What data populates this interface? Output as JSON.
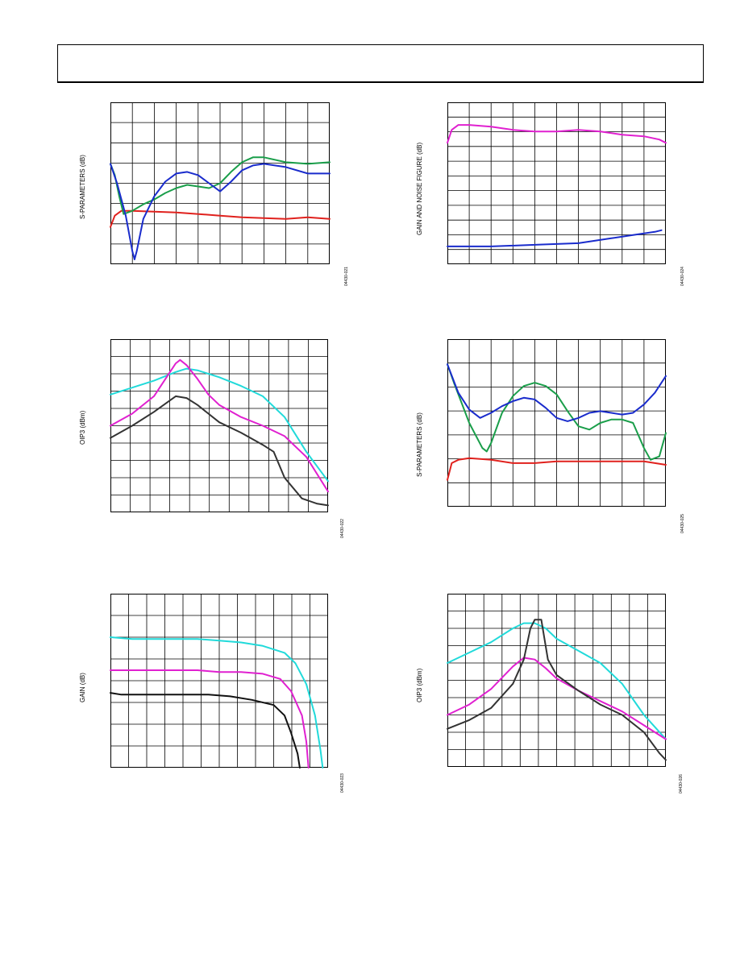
{
  "charts": [
    {
      "id": "c1",
      "ylabel": "S-PARAMETERS (dB)",
      "figid": "04430-021",
      "xticks": 10,
      "yticks": 8,
      "series": [
        {
          "color": "#e0211d",
          "pts": [
            [
              0,
              0.23
            ],
            [
              0.02,
              0.3
            ],
            [
              0.05,
              0.33
            ],
            [
              0.1,
              0.33
            ],
            [
              0.3,
              0.32
            ],
            [
              0.5,
              0.3
            ],
            [
              0.6,
              0.29
            ],
            [
              0.8,
              0.28
            ],
            [
              0.9,
              0.29
            ],
            [
              1,
              0.28
            ]
          ]
        },
        {
          "color": "#1a9e4a",
          "pts": [
            [
              0,
              0.62
            ],
            [
              0.02,
              0.55
            ],
            [
              0.04,
              0.42
            ],
            [
              0.06,
              0.31
            ],
            [
              0.1,
              0.33
            ],
            [
              0.15,
              0.37
            ],
            [
              0.2,
              0.4
            ],
            [
              0.25,
              0.44
            ],
            [
              0.3,
              0.47
            ],
            [
              0.35,
              0.49
            ],
            [
              0.4,
              0.48
            ],
            [
              0.45,
              0.47
            ],
            [
              0.5,
              0.5
            ],
            [
              0.55,
              0.57
            ],
            [
              0.6,
              0.63
            ],
            [
              0.65,
              0.66
            ],
            [
              0.7,
              0.66
            ],
            [
              0.8,
              0.63
            ],
            [
              0.9,
              0.62
            ],
            [
              1,
              0.63
            ]
          ]
        },
        {
          "color": "#1a2ccc",
          "pts": [
            [
              0,
              0.62
            ],
            [
              0.03,
              0.5
            ],
            [
              0.07,
              0.3
            ],
            [
              0.1,
              0.08
            ],
            [
              0.11,
              0.03
            ],
            [
              0.12,
              0.08
            ],
            [
              0.15,
              0.28
            ],
            [
              0.2,
              0.42
            ],
            [
              0.25,
              0.51
            ],
            [
              0.3,
              0.56
            ],
            [
              0.35,
              0.57
            ],
            [
              0.4,
              0.55
            ],
            [
              0.45,
              0.5
            ],
            [
              0.5,
              0.45
            ],
            [
              0.55,
              0.51
            ],
            [
              0.6,
              0.58
            ],
            [
              0.65,
              0.61
            ],
            [
              0.7,
              0.62
            ],
            [
              0.8,
              0.6
            ],
            [
              0.9,
              0.56
            ],
            [
              1,
              0.56
            ]
          ]
        }
      ]
    },
    {
      "id": "c2",
      "ylabel": "GAIN AND NOISE FIGURE (dB)",
      "figid": "04430-024",
      "xticks": 10,
      "yticks": 11,
      "series": [
        {
          "color": "#e020d0",
          "pts": [
            [
              0,
              0.75
            ],
            [
              0.02,
              0.83
            ],
            [
              0.05,
              0.86
            ],
            [
              0.1,
              0.86
            ],
            [
              0.2,
              0.85
            ],
            [
              0.3,
              0.83
            ],
            [
              0.4,
              0.82
            ],
            [
              0.5,
              0.82
            ],
            [
              0.6,
              0.83
            ],
            [
              0.7,
              0.82
            ],
            [
              0.8,
              0.8
            ],
            [
              0.9,
              0.79
            ],
            [
              0.97,
              0.77
            ],
            [
              1,
              0.75
            ]
          ]
        },
        {
          "color": "#1a2ccc",
          "pts": [
            [
              0,
              0.11
            ],
            [
              0.05,
              0.11
            ],
            [
              0.2,
              0.11
            ],
            [
              0.4,
              0.12
            ],
            [
              0.6,
              0.13
            ],
            [
              0.75,
              0.16
            ],
            [
              0.85,
              0.18
            ],
            [
              0.95,
              0.2
            ],
            [
              0.98,
              0.21
            ]
          ]
        }
      ]
    },
    {
      "id": "c3",
      "ylabel": "OIP3 (dBm)",
      "figid": "04430-022",
      "xticks": 11,
      "yticks": 10,
      "series": [
        {
          "color": "#21dada",
          "pts": [
            [
              0,
              0.68
            ],
            [
              0.1,
              0.72
            ],
            [
              0.2,
              0.76
            ],
            [
              0.3,
              0.81
            ],
            [
              0.35,
              0.83
            ],
            [
              0.4,
              0.82
            ],
            [
              0.5,
              0.78
            ],
            [
              0.6,
              0.73
            ],
            [
              0.7,
              0.67
            ],
            [
              0.8,
              0.55
            ],
            [
              0.9,
              0.35
            ],
            [
              1,
              0.18
            ]
          ]
        },
        {
          "color": "#e020d0",
          "pts": [
            [
              0,
              0.5
            ],
            [
              0.1,
              0.57
            ],
            [
              0.2,
              0.67
            ],
            [
              0.3,
              0.86
            ],
            [
              0.32,
              0.88
            ],
            [
              0.35,
              0.85
            ],
            [
              0.4,
              0.77
            ],
            [
              0.45,
              0.68
            ],
            [
              0.5,
              0.62
            ],
            [
              0.6,
              0.55
            ],
            [
              0.7,
              0.5
            ],
            [
              0.8,
              0.44
            ],
            [
              0.9,
              0.32
            ],
            [
              1,
              0.12
            ]
          ]
        },
        {
          "color": "#333333",
          "pts": [
            [
              0,
              0.43
            ],
            [
              0.1,
              0.5
            ],
            [
              0.2,
              0.58
            ],
            [
              0.3,
              0.67
            ],
            [
              0.35,
              0.66
            ],
            [
              0.4,
              0.62
            ],
            [
              0.5,
              0.52
            ],
            [
              0.6,
              0.46
            ],
            [
              0.7,
              0.39
            ],
            [
              0.75,
              0.35
            ],
            [
              0.8,
              0.2
            ],
            [
              0.88,
              0.08
            ],
            [
              0.95,
              0.05
            ],
            [
              1,
              0.04
            ]
          ]
        }
      ]
    },
    {
      "id": "c4",
      "ylabel": "S-PARAMETERS (dB)",
      "figid": "04430-025",
      "xticks": 10,
      "yticks": 7,
      "series": [
        {
          "color": "#e0211d",
          "pts": [
            [
              0,
              0.16
            ],
            [
              0.02,
              0.26
            ],
            [
              0.05,
              0.28
            ],
            [
              0.1,
              0.29
            ],
            [
              0.2,
              0.28
            ],
            [
              0.3,
              0.26
            ],
            [
              0.4,
              0.26
            ],
            [
              0.5,
              0.27
            ],
            [
              0.6,
              0.27
            ],
            [
              0.7,
              0.27
            ],
            [
              0.8,
              0.27
            ],
            [
              0.9,
              0.27
            ],
            [
              1,
              0.25
            ]
          ]
        },
        {
          "color": "#1a9e4a",
          "pts": [
            [
              0,
              0.85
            ],
            [
              0.03,
              0.74
            ],
            [
              0.1,
              0.5
            ],
            [
              0.16,
              0.35
            ],
            [
              0.18,
              0.33
            ],
            [
              0.2,
              0.38
            ],
            [
              0.25,
              0.56
            ],
            [
              0.3,
              0.66
            ],
            [
              0.35,
              0.72
            ],
            [
              0.4,
              0.74
            ],
            [
              0.45,
              0.72
            ],
            [
              0.5,
              0.67
            ],
            [
              0.55,
              0.57
            ],
            [
              0.6,
              0.48
            ],
            [
              0.65,
              0.46
            ],
            [
              0.7,
              0.5
            ],
            [
              0.75,
              0.52
            ],
            [
              0.8,
              0.52
            ],
            [
              0.85,
              0.5
            ],
            [
              0.9,
              0.35
            ],
            [
              0.93,
              0.28
            ],
            [
              0.97,
              0.3
            ],
            [
              1,
              0.44
            ]
          ]
        },
        {
          "color": "#1a2ccc",
          "pts": [
            [
              0,
              0.85
            ],
            [
              0.05,
              0.68
            ],
            [
              0.1,
              0.58
            ],
            [
              0.15,
              0.53
            ],
            [
              0.2,
              0.56
            ],
            [
              0.25,
              0.6
            ],
            [
              0.3,
              0.63
            ],
            [
              0.35,
              0.65
            ],
            [
              0.4,
              0.64
            ],
            [
              0.45,
              0.59
            ],
            [
              0.5,
              0.53
            ],
            [
              0.55,
              0.51
            ],
            [
              0.6,
              0.53
            ],
            [
              0.65,
              0.56
            ],
            [
              0.7,
              0.57
            ],
            [
              0.75,
              0.56
            ],
            [
              0.8,
              0.55
            ],
            [
              0.85,
              0.56
            ],
            [
              0.9,
              0.61
            ],
            [
              0.95,
              0.68
            ],
            [
              1,
              0.78
            ]
          ]
        }
      ]
    },
    {
      "id": "c5",
      "ylabel": "GAIN (dB)",
      "figid": "04430-023",
      "xticks": 12,
      "yticks": 8,
      "series": [
        {
          "color": "#21dada",
          "pts": [
            [
              0,
              0.75
            ],
            [
              0.1,
              0.74
            ],
            [
              0.2,
              0.74
            ],
            [
              0.3,
              0.74
            ],
            [
              0.4,
              0.74
            ],
            [
              0.5,
              0.73
            ],
            [
              0.6,
              0.72
            ],
            [
              0.7,
              0.7
            ],
            [
              0.8,
              0.66
            ],
            [
              0.85,
              0.6
            ],
            [
              0.9,
              0.48
            ],
            [
              0.94,
              0.3
            ],
            [
              0.965,
              0.1
            ],
            [
              0.975,
              0.0
            ]
          ]
        },
        {
          "color": "#e020d0",
          "pts": [
            [
              0,
              0.56
            ],
            [
              0.1,
              0.56
            ],
            [
              0.2,
              0.56
            ],
            [
              0.3,
              0.56
            ],
            [
              0.4,
              0.56
            ],
            [
              0.5,
              0.55
            ],
            [
              0.6,
              0.55
            ],
            [
              0.7,
              0.54
            ],
            [
              0.78,
              0.51
            ],
            [
              0.83,
              0.44
            ],
            [
              0.88,
              0.3
            ],
            [
              0.9,
              0.15
            ],
            [
              0.91,
              0.0
            ]
          ]
        },
        {
          "color": "#111111",
          "pts": [
            [
              0,
              0.43
            ],
            [
              0.05,
              0.42
            ],
            [
              0.15,
              0.42
            ],
            [
              0.3,
              0.42
            ],
            [
              0.45,
              0.42
            ],
            [
              0.55,
              0.41
            ],
            [
              0.65,
              0.39
            ],
            [
              0.75,
              0.36
            ],
            [
              0.8,
              0.3
            ],
            [
              0.83,
              0.2
            ],
            [
              0.86,
              0.08
            ],
            [
              0.87,
              0.0
            ]
          ]
        }
      ]
    },
    {
      "id": "c6",
      "ylabel": "OIP3 (dBm)",
      "figid": "04430-026",
      "xticks": 12,
      "yticks": 10,
      "series": [
        {
          "color": "#21dada",
          "pts": [
            [
              0,
              0.6
            ],
            [
              0.1,
              0.66
            ],
            [
              0.2,
              0.72
            ],
            [
              0.3,
              0.8
            ],
            [
              0.35,
              0.83
            ],
            [
              0.4,
              0.83
            ],
            [
              0.45,
              0.8
            ],
            [
              0.5,
              0.74
            ],
            [
              0.6,
              0.67
            ],
            [
              0.7,
              0.6
            ],
            [
              0.8,
              0.48
            ],
            [
              0.9,
              0.3
            ],
            [
              1,
              0.16
            ]
          ]
        },
        {
          "color": "#e020d0",
          "pts": [
            [
              0,
              0.3
            ],
            [
              0.1,
              0.36
            ],
            [
              0.2,
              0.45
            ],
            [
              0.3,
              0.58
            ],
            [
              0.35,
              0.63
            ],
            [
              0.4,
              0.62
            ],
            [
              0.45,
              0.57
            ],
            [
              0.5,
              0.51
            ],
            [
              0.6,
              0.44
            ],
            [
              0.7,
              0.38
            ],
            [
              0.8,
              0.32
            ],
            [
              0.9,
              0.24
            ],
            [
              1,
              0.16
            ]
          ]
        },
        {
          "color": "#333333",
          "pts": [
            [
              0,
              0.22
            ],
            [
              0.1,
              0.27
            ],
            [
              0.2,
              0.34
            ],
            [
              0.3,
              0.48
            ],
            [
              0.35,
              0.62
            ],
            [
              0.38,
              0.8
            ],
            [
              0.4,
              0.85
            ],
            [
              0.43,
              0.85
            ],
            [
              0.46,
              0.62
            ],
            [
              0.5,
              0.53
            ],
            [
              0.6,
              0.44
            ],
            [
              0.7,
              0.36
            ],
            [
              0.8,
              0.3
            ],
            [
              0.9,
              0.2
            ],
            [
              0.97,
              0.08
            ],
            [
              1,
              0.04
            ]
          ]
        }
      ]
    }
  ]
}
